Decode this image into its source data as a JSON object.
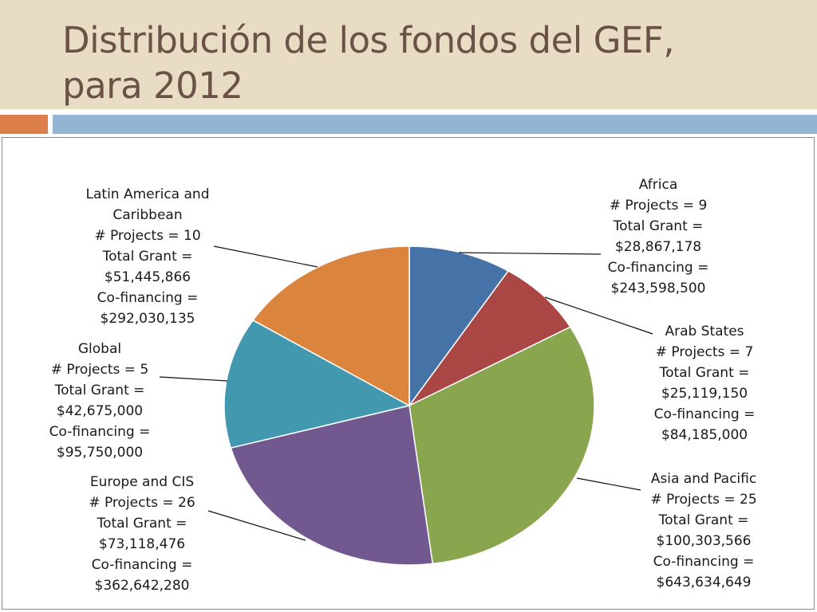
{
  "slide": {
    "title_line1": "Distribución de los fondos del GEF,",
    "title_line2": "para 2012"
  },
  "chart_data": {
    "type": "pie",
    "title": "",
    "slices": [
      {
        "name": "Africa",
        "projects": 9,
        "total_grant": 28867178,
        "co_financing": 243598500,
        "color": "#4572a7",
        "label_lines": [
          "Africa",
          "# Projects = 9",
          "Total Grant =",
          "$28,867,178",
          "Co-financing =",
          "$243,598,500"
        ]
      },
      {
        "name": "Arab States",
        "projects": 7,
        "total_grant": 25119150,
        "co_financing": 84185000,
        "color": "#aa4643",
        "label_lines": [
          "Arab States",
          "# Projects = 7",
          "Total Grant =",
          "$25,119,150",
          "Co-financing =",
          "$84,185,000"
        ]
      },
      {
        "name": "Asia and Pacific",
        "projects": 25,
        "total_grant": 100303566,
        "co_financing": 643634649,
        "color": "#89a54e",
        "label_lines": [
          "Asia and  Pacific",
          "# Projects = 25",
          "Total Grant =",
          "$100,303,566",
          "Co-financing =",
          "$643,634,649"
        ]
      },
      {
        "name": "Europe and CIS",
        "projects": 26,
        "total_grant": 73118476,
        "co_financing": 362642280,
        "color": "#71588f",
        "label_lines": [
          "Europe and CIS",
          "# Projects = 26",
          "Total Grant =",
          "$73,118,476",
          "Co-financing =",
          "$362,642,280"
        ]
      },
      {
        "name": "Global",
        "projects": 5,
        "total_grant": 42675000,
        "co_financing": 95750000,
        "color": "#4198af",
        "label_lines": [
          "Global",
          "# Projects = 5",
          "Total Grant =",
          "$42,675,000",
          "Co-financing =",
          "$95,750,000"
        ]
      },
      {
        "name": "Latin America and Caribbean",
        "projects": 10,
        "total_grant": 51445866,
        "co_financing": 292030135,
        "color": "#db843d",
        "label_lines": [
          "Latin America and",
          "Caribbean",
          "# Projects = 10",
          "Total Grant =",
          "$51,445,866",
          "Co-financing =",
          "$292,030,135"
        ]
      }
    ]
  }
}
